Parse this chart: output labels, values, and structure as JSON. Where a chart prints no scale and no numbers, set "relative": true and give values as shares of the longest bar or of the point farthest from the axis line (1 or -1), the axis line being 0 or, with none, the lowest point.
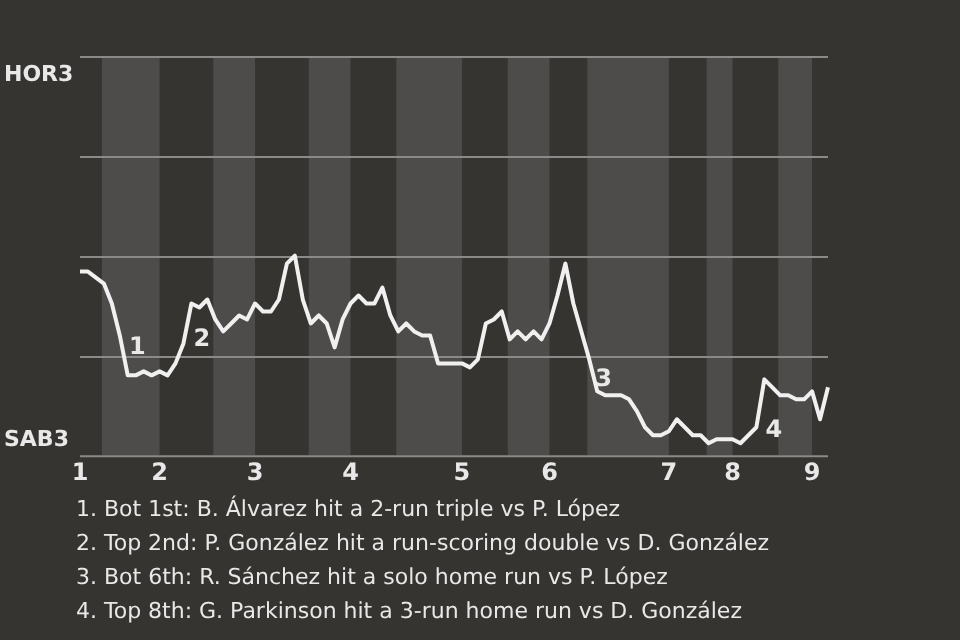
{
  "chart_data": {
    "type": "line",
    "relative": true,
    "categories": [
      "1",
      null,
      null,
      null,
      null,
      null,
      null,
      null,
      null,
      null,
      "2",
      null,
      null,
      null,
      null,
      null,
      null,
      null,
      null,
      null,
      null,
      null,
      "3",
      null,
      null,
      null,
      null,
      null,
      null,
      null,
      null,
      null,
      null,
      null,
      "4",
      null,
      null,
      null,
      null,
      null,
      null,
      null,
      null,
      null,
      null,
      null,
      null,
      null,
      "5",
      null,
      null,
      null,
      null,
      null,
      null,
      null,
      null,
      null,
      null,
      "6",
      null,
      null,
      null,
      null,
      null,
      null,
      null,
      null,
      null,
      null,
      null,
      null,
      null,
      null,
      "7",
      null,
      null,
      null,
      null,
      null,
      null,
      null,
      "8",
      null,
      null,
      null,
      null,
      null,
      null,
      null,
      null,
      null,
      "9",
      null,
      null
    ],
    "legend": false,
    "marker": "none",
    "line_style": "solid",
    "ref_lines": [
      {
        "axis": "y",
        "value": 0.5,
        "color": "#8a8a88"
      },
      {
        "axis": "y",
        "value": 1,
        "color": "#8a8a88"
      },
      {
        "axis": "y",
        "value": 1.5,
        "color": "#8a8a88"
      },
      {
        "axis": "y",
        "value": 2,
        "color": "#8a8a88"
      }
    ],
    "series": [
      {
        "color": "#f0f0f0",
        "values": [
          0.92,
          0.92,
          0.89,
          0.86,
          0.76,
          0.6,
          0.4,
          0.4,
          0.42,
          0.4,
          0.42,
          0.4,
          0.46,
          0.56,
          0.76,
          0.74,
          0.78,
          0.68,
          0.62,
          0.66,
          0.7,
          0.68,
          0.76,
          0.72,
          0.72,
          0.78,
          0.96,
          1,
          0.78,
          0.66,
          0.7,
          0.66,
          0.54,
          0.68,
          0.76,
          0.8,
          0.76,
          0.76,
          0.84,
          0.7,
          0.62,
          0.66,
          0.62,
          0.6,
          0.6,
          0.46,
          0.46,
          0.46,
          0.46,
          0.44,
          0.48,
          0.66,
          0.68,
          0.72,
          0.58,
          0.62,
          0.58,
          0.62,
          0.58,
          0.66,
          0.8,
          0.96,
          0.76,
          0.62,
          0.48,
          0.32,
          0.3,
          0.3,
          0.3,
          0.28,
          0.22,
          0.14,
          0.1,
          0.1,
          0.12,
          0.18,
          0.14,
          0.1,
          0.1,
          0.06,
          0.08,
          0.08,
          0.08,
          0.06,
          0.1,
          0.14,
          0.38,
          0.34,
          0.3,
          0.3,
          0.28,
          0.28,
          0.32,
          0.18,
          0.34
        ]
      }
    ],
    "annotations": [
      "HOR3",
      "SAB3",
      "1",
      "2",
      "3",
      "4",
      "1. Bot 1st: B. Álvarez hit a 2-run triple vs P. López",
      "2. Top 2nd: P. González hit a run-scoring double vs D. González",
      "3. Bot 6th: R. Sánchez hit a solo home run vs P. López",
      "4. Top 8th: G. Parkinson hit a 3-run home run vs D. González"
    ]
  }
}
